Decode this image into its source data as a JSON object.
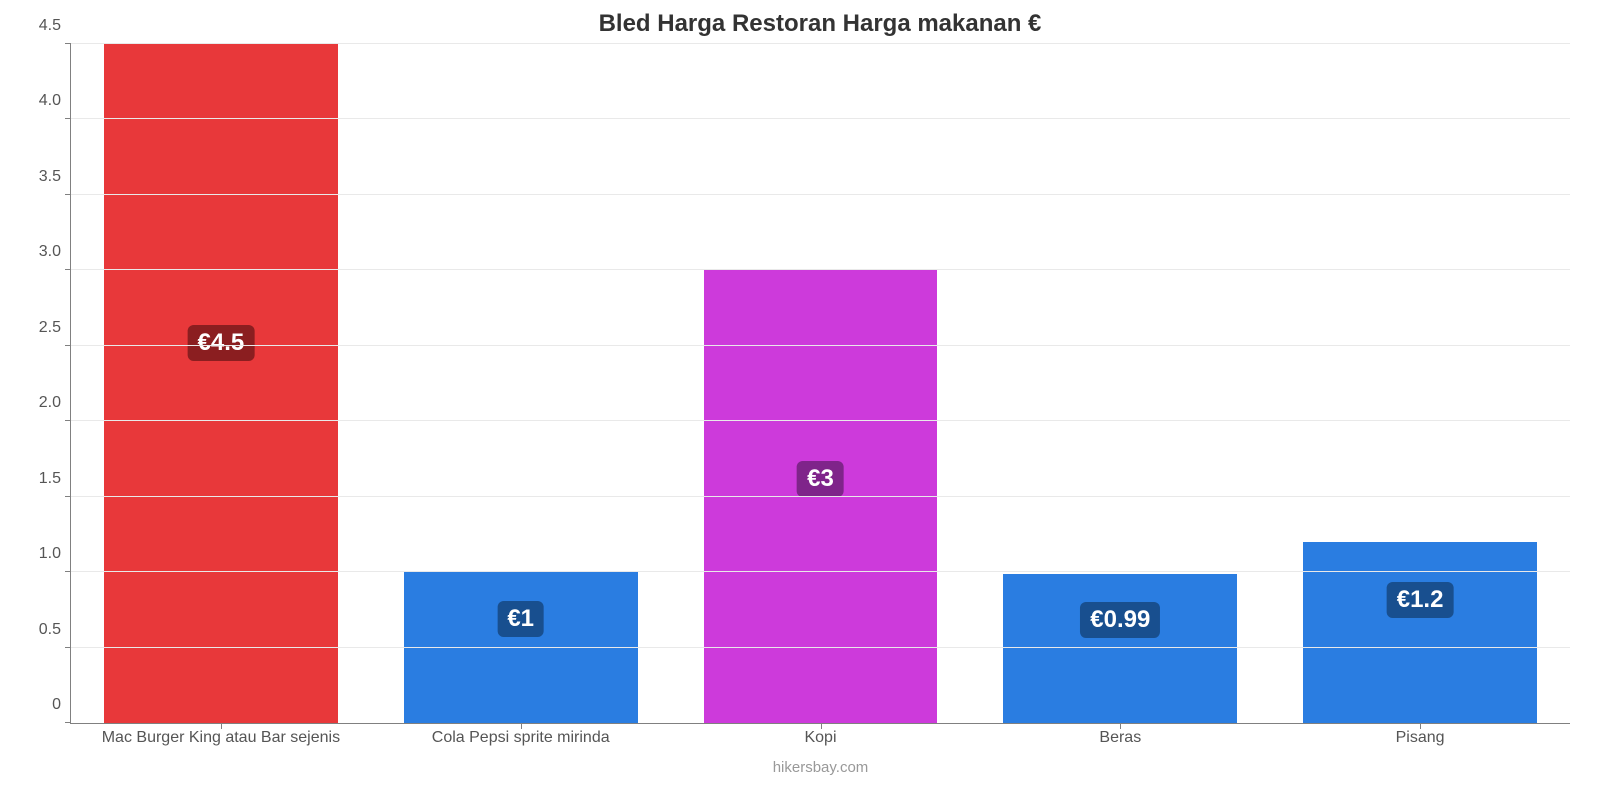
{
  "chart": {
    "type": "bar",
    "title": "Bled Harga Restoran Harga makanan €",
    "title_fontsize": 24,
    "title_color": "#333333",
    "categories": [
      "Mac Burger King atau Bar sejenis",
      "Cola Pepsi sprite mirinda",
      "Kopi",
      "Beras",
      "Pisang"
    ],
    "values": [
      4.5,
      1,
      3,
      0.99,
      1.2
    ],
    "value_labels": [
      "€4.5",
      "€1",
      "€3",
      "€0.99",
      "€1.2"
    ],
    "bar_colors": [
      "#e8383a",
      "#2a7de1",
      "#cd3adb",
      "#2a7de1",
      "#2a7de1"
    ],
    "badge_colors": [
      "#8b1e20",
      "#184f8f",
      "#7f248a",
      "#184f8f",
      "#184f8f"
    ],
    "value_badge_top_percent": [
      44,
      31,
      46,
      31,
      32
    ],
    "bar_width_percent": 78,
    "ylim": [
      0,
      4.5
    ],
    "yticks": [
      0,
      0.5,
      1.0,
      1.5,
      2.0,
      2.5,
      3.0,
      3.5,
      4.0,
      4.5
    ],
    "ytick_labels": [
      "0",
      "0.5",
      "1.0",
      "1.5",
      "2.0",
      "2.5",
      "3.0",
      "3.5",
      "4.0",
      "4.5"
    ],
    "grid_color": "#e9e9e9",
    "axis_color": "#808080",
    "xlabel_fontsize": 16,
    "ylabel_fontsize": 16,
    "value_label_fontsize": 24,
    "background_color": "#ffffff",
    "credit": "hikersbay.com",
    "credit_color": "#999999",
    "credit_fontsize": 15
  }
}
